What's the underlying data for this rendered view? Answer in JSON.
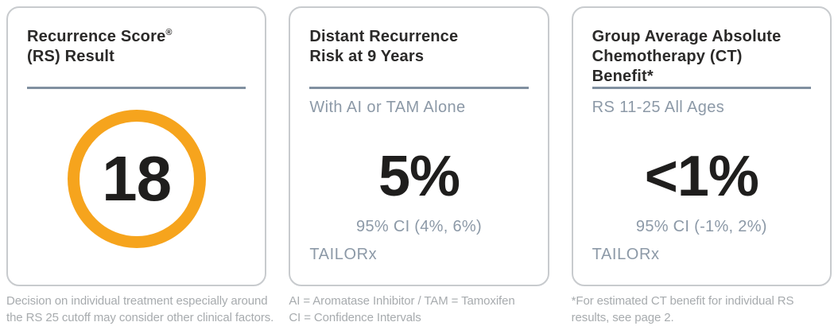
{
  "colors": {
    "accent_orange": "#f6a41d",
    "heading_text": "#2b2a29",
    "muted_blue_gray": "#8c99a7",
    "divider_gray": "#8090a0",
    "card_border": "#c8cbce",
    "footnote_gray": "#a7abae"
  },
  "cards": {
    "recurrence_score": {
      "title_line1": "Recurrence Score",
      "title_registered_mark": "®",
      "title_line2": "(RS) Result",
      "score_value": "18",
      "footnote_line1": "Decision on individual treatment especially around",
      "footnote_line2": "the RS 25 cutoff may consider other clinical factors."
    },
    "distant_recurrence": {
      "title_line1": "Distant Recurrence",
      "title_line2": "Risk at 9 Years",
      "subtitle": "With AI or TAM Alone",
      "value": "5%",
      "confidence_interval": "95% CI (4%, 6%)",
      "trial_name": "TAILORx",
      "footnote_line1": "AI = Aromatase Inhibitor / TAM = Tamoxifen",
      "footnote_line2": "CI = Confidence Intervals"
    },
    "chemo_benefit": {
      "title_line1": "Group Average Absolute",
      "title_line2": "Chemotherapy (CT)",
      "title_line3": "Benefit*",
      "subtitle": "RS 11-25 All Ages",
      "value": "<1%",
      "confidence_interval": "95% CI (-1%, 2%)",
      "trial_name": "TAILORx",
      "footnote_line1": "*For estimated CT benefit for individual RS",
      "footnote_line2": "results, see page 2."
    }
  }
}
